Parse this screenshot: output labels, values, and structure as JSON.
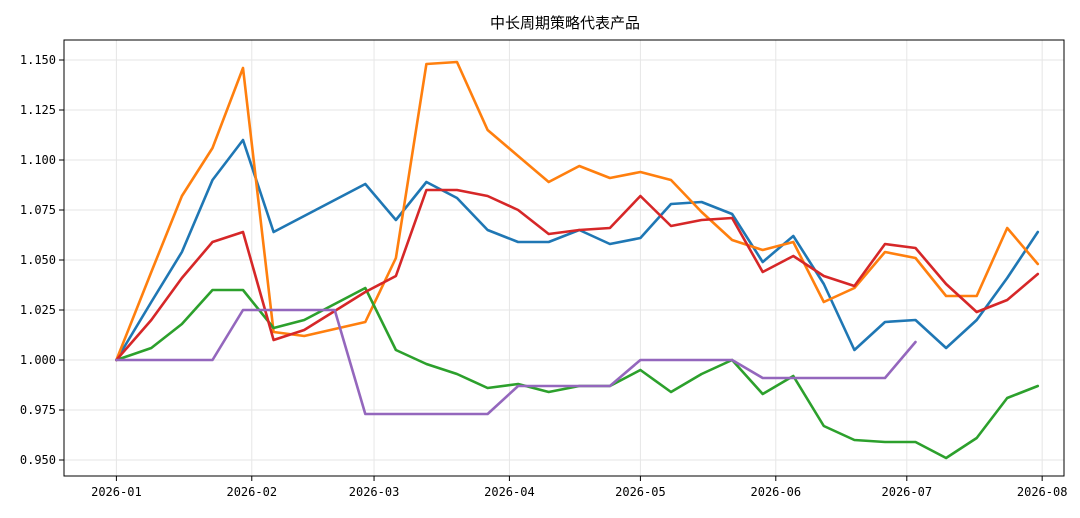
{
  "chart_data": {
    "type": "line",
    "title": "中长周期策略代表产品",
    "xlabel": "",
    "ylabel": "",
    "xlim": [
      "2025-12-20",
      "2026-08-06"
    ],
    "ylim": [
      0.942,
      1.16
    ],
    "grid": true,
    "legend": "none",
    "x_ticks": [
      "2026-01-01",
      "2026-02-01",
      "2026-03-01",
      "2026-04-01",
      "2026-05-01",
      "2026-06-01",
      "2026-07-01",
      "2026-08-01"
    ],
    "x_tick_labels": [
      "2026-01",
      "2026-02",
      "2026-03",
      "2026-04",
      "2026-05",
      "2026-06",
      "2026-07",
      "2026-08"
    ],
    "y_ticks": [
      0.95,
      0.975,
      1.0,
      1.025,
      1.05,
      1.075,
      1.1,
      1.125,
      1.15
    ],
    "y_tick_labels": [
      "0.950",
      "0.975",
      "1.000",
      "1.025",
      "1.050",
      "1.075",
      "1.100",
      "1.125",
      "1.150"
    ],
    "series": [
      {
        "color": "#1f77b4",
        "points": [
          [
            "2026-01-01",
            1.0
          ],
          [
            "2026-01-09",
            1.029
          ],
          [
            "2026-01-16",
            1.054
          ],
          [
            "2026-01-23",
            1.09
          ],
          [
            "2026-01-30",
            1.11
          ],
          [
            "2026-02-06",
            1.064
          ],
          [
            "2026-02-27",
            1.088
          ],
          [
            "2026-03-06",
            1.07
          ],
          [
            "2026-03-13",
            1.089
          ],
          [
            "2026-03-20",
            1.081
          ],
          [
            "2026-03-27",
            1.065
          ],
          [
            "2026-04-03",
            1.059
          ],
          [
            "2026-04-10",
            1.059
          ],
          [
            "2026-04-17",
            1.065
          ],
          [
            "2026-04-24",
            1.058
          ],
          [
            "2026-05-01",
            1.061
          ],
          [
            "2026-05-08",
            1.078
          ],
          [
            "2026-05-15",
            1.079
          ],
          [
            "2026-05-22",
            1.073
          ],
          [
            "2026-05-29",
            1.049
          ],
          [
            "2026-06-05",
            1.062
          ],
          [
            "2026-06-12",
            1.038
          ],
          [
            "2026-06-19",
            1.005
          ],
          [
            "2026-06-26",
            1.019
          ],
          [
            "2026-07-03",
            1.02
          ],
          [
            "2026-07-10",
            1.006
          ],
          [
            "2026-07-17",
            1.02
          ],
          [
            "2026-07-24",
            1.041
          ],
          [
            "2026-07-31",
            1.064
          ]
        ]
      },
      {
        "color": "#ff7f0e",
        "points": [
          [
            "2026-01-01",
            1.0
          ],
          [
            "2026-01-09",
            1.044
          ],
          [
            "2026-01-16",
            1.082
          ],
          [
            "2026-01-23",
            1.106
          ],
          [
            "2026-01-30",
            1.146
          ],
          [
            "2026-02-06",
            1.014
          ],
          [
            "2026-02-13",
            1.012
          ],
          [
            "2026-02-27",
            1.019
          ],
          [
            "2026-03-06",
            1.051
          ],
          [
            "2026-03-13",
            1.148
          ],
          [
            "2026-03-20",
            1.149
          ],
          [
            "2026-03-27",
            1.115
          ],
          [
            "2026-04-03",
            1.102
          ],
          [
            "2026-04-10",
            1.089
          ],
          [
            "2026-04-17",
            1.097
          ],
          [
            "2026-04-24",
            1.091
          ],
          [
            "2026-05-01",
            1.094
          ],
          [
            "2026-05-08",
            1.09
          ],
          [
            "2026-05-15",
            1.074
          ],
          [
            "2026-05-22",
            1.06
          ],
          [
            "2026-05-29",
            1.055
          ],
          [
            "2026-06-05",
            1.059
          ],
          [
            "2026-06-12",
            1.029
          ],
          [
            "2026-06-19",
            1.036
          ],
          [
            "2026-06-26",
            1.054
          ],
          [
            "2026-07-03",
            1.051
          ],
          [
            "2026-07-10",
            1.032
          ],
          [
            "2026-07-17",
            1.032
          ],
          [
            "2026-07-24",
            1.066
          ],
          [
            "2026-07-31",
            1.048
          ]
        ]
      },
      {
        "color": "#2ca02c",
        "points": [
          [
            "2026-01-01",
            1.0
          ],
          [
            "2026-01-09",
            1.006
          ],
          [
            "2026-01-16",
            1.018
          ],
          [
            "2026-01-23",
            1.035
          ],
          [
            "2026-01-30",
            1.035
          ],
          [
            "2026-02-06",
            1.016
          ],
          [
            "2026-02-13",
            1.02
          ],
          [
            "2026-02-27",
            1.036
          ],
          [
            "2026-03-06",
            1.005
          ],
          [
            "2026-03-13",
            0.998
          ],
          [
            "2026-03-20",
            0.993
          ],
          [
            "2026-03-27",
            0.986
          ],
          [
            "2026-04-03",
            0.988
          ],
          [
            "2026-04-10",
            0.984
          ],
          [
            "2026-04-17",
            0.987
          ],
          [
            "2026-04-24",
            0.987
          ],
          [
            "2026-05-01",
            0.995
          ],
          [
            "2026-05-08",
            0.984
          ],
          [
            "2026-05-15",
            0.993
          ],
          [
            "2026-05-22",
            1.0
          ],
          [
            "2026-05-29",
            0.983
          ],
          [
            "2026-06-05",
            0.992
          ],
          [
            "2026-06-12",
            0.967
          ],
          [
            "2026-06-19",
            0.96
          ],
          [
            "2026-06-26",
            0.959
          ],
          [
            "2026-07-03",
            0.959
          ],
          [
            "2026-07-10",
            0.951
          ],
          [
            "2026-07-17",
            0.961
          ],
          [
            "2026-07-24",
            0.981
          ],
          [
            "2026-07-31",
            0.987
          ]
        ]
      },
      {
        "color": "#d62728",
        "points": [
          [
            "2026-01-01",
            1.0
          ],
          [
            "2026-01-09",
            1.02
          ],
          [
            "2026-01-16",
            1.041
          ],
          [
            "2026-01-23",
            1.059
          ],
          [
            "2026-01-30",
            1.064
          ],
          [
            "2026-02-06",
            1.01
          ],
          [
            "2026-02-13",
            1.015
          ],
          [
            "2026-02-27",
            1.034
          ],
          [
            "2026-03-06",
            1.042
          ],
          [
            "2026-03-13",
            1.085
          ],
          [
            "2026-03-20",
            1.085
          ],
          [
            "2026-03-27",
            1.082
          ],
          [
            "2026-04-03",
            1.075
          ],
          [
            "2026-04-10",
            1.063
          ],
          [
            "2026-04-17",
            1.065
          ],
          [
            "2026-04-24",
            1.066
          ],
          [
            "2026-05-01",
            1.082
          ],
          [
            "2026-05-08",
            1.067
          ],
          [
            "2026-05-15",
            1.07
          ],
          [
            "2026-05-22",
            1.071
          ],
          [
            "2026-05-29",
            1.044
          ],
          [
            "2026-06-05",
            1.052
          ],
          [
            "2026-06-12",
            1.042
          ],
          [
            "2026-06-19",
            1.037
          ],
          [
            "2026-06-26",
            1.058
          ],
          [
            "2026-07-03",
            1.056
          ],
          [
            "2026-07-10",
            1.038
          ],
          [
            "2026-07-17",
            1.024
          ],
          [
            "2026-07-24",
            1.03
          ],
          [
            "2026-07-31",
            1.043
          ]
        ]
      },
      {
        "color": "#9467bd",
        "points": [
          [
            "2026-01-01",
            1.0
          ],
          [
            "2026-01-23",
            1.0
          ],
          [
            "2026-01-30",
            1.025
          ],
          [
            "2026-02-20",
            1.025
          ],
          [
            "2026-02-27",
            0.973
          ],
          [
            "2026-03-27",
            0.973
          ],
          [
            "2026-04-03",
            0.987
          ],
          [
            "2026-04-24",
            0.987
          ],
          [
            "2026-05-01",
            1.0
          ],
          [
            "2026-05-22",
            1.0
          ],
          [
            "2026-05-29",
            0.991
          ],
          [
            "2026-06-26",
            0.991
          ],
          [
            "2026-07-03",
            1.009
          ]
        ]
      }
    ]
  }
}
